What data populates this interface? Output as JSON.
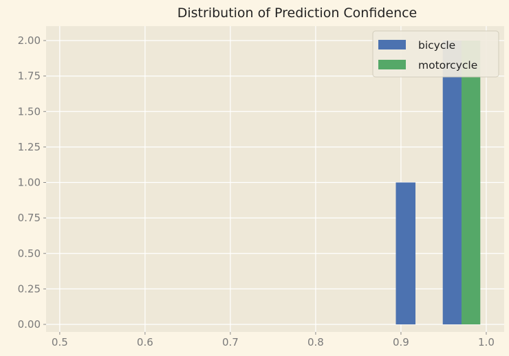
{
  "colors": {
    "page_background": "#fcf5e5",
    "plot_background": "#eee8d8",
    "grid": "#ffffff",
    "tick_text": "#7a7a7a",
    "title_text": "#222222",
    "legend_background": "#f1ecdf",
    "legend_border": "#cfcab9"
  },
  "chart_data": {
    "type": "bar",
    "title": "Distribution of Prediction Confidence",
    "xlabel": "",
    "ylabel": "",
    "xlim": [
      0.484,
      1.021
    ],
    "ylim": [
      0,
      2.1
    ],
    "grid": true,
    "legend_position": "top-right",
    "x_ticks": [
      {
        "value": 0.5,
        "label": "0.5"
      },
      {
        "value": 0.6,
        "label": "0.6"
      },
      {
        "value": 0.7,
        "label": "0.7"
      },
      {
        "value": 0.8,
        "label": "0.8"
      },
      {
        "value": 0.9,
        "label": "0.9"
      },
      {
        "value": 1.0,
        "label": "1.0"
      }
    ],
    "y_ticks": [
      {
        "value": 0.0,
        "label": "0.00"
      },
      {
        "value": 0.25,
        "label": "0.25"
      },
      {
        "value": 0.5,
        "label": "0.50"
      },
      {
        "value": 0.75,
        "label": "0.75"
      },
      {
        "value": 1.0,
        "label": "1.00"
      },
      {
        "value": 1.25,
        "label": "1.25"
      },
      {
        "value": 1.5,
        "label": "1.50"
      },
      {
        "value": 1.75,
        "label": "1.75"
      },
      {
        "value": 2.0,
        "label": "2.00"
      }
    ],
    "series": [
      {
        "name": "bicycle",
        "color": "#4c72b0",
        "bars": [
          {
            "x_start": 0.894,
            "x_end": 0.917,
            "value": 1
          },
          {
            "x_start": 0.949,
            "x_end": 0.971,
            "value": 2
          }
        ]
      },
      {
        "name": "motorcycle",
        "color": "#55a868",
        "bars": [
          {
            "x_start": 0.971,
            "x_end": 0.993,
            "value": 2
          }
        ]
      }
    ]
  }
}
